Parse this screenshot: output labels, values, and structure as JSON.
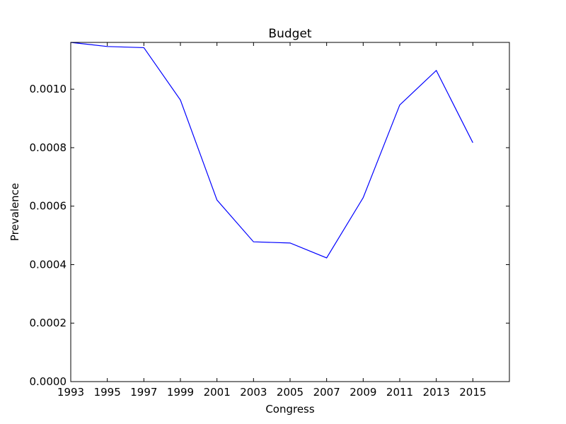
{
  "chart_data": {
    "type": "line",
    "title": "Budget",
    "xlabel": "Congress",
    "ylabel": "Prevalence",
    "xlim": [
      1993,
      2017
    ],
    "ylim": [
      0,
      0.00116
    ],
    "xticks": [
      "1993",
      "1995",
      "1997",
      "1999",
      "2001",
      "2003",
      "2005",
      "2007",
      "2009",
      "2011",
      "2013",
      "2015"
    ],
    "yticks": [
      "0.0000",
      "0.0002",
      "0.0004",
      "0.0006",
      "0.0008",
      "0.0010"
    ],
    "grid": false,
    "line_color": "#0000ff",
    "series": [
      {
        "x": [
          1993,
          1995,
          1997,
          1999,
          2001,
          2003,
          2005,
          2007,
          2009,
          2011,
          2013,
          2015
        ],
        "y": [
          0.00116,
          0.001146,
          0.001142,
          0.000963,
          0.000621,
          0.000478,
          0.000474,
          0.000423,
          0.000629,
          0.000946,
          0.001064,
          0.000817
        ]
      }
    ]
  }
}
